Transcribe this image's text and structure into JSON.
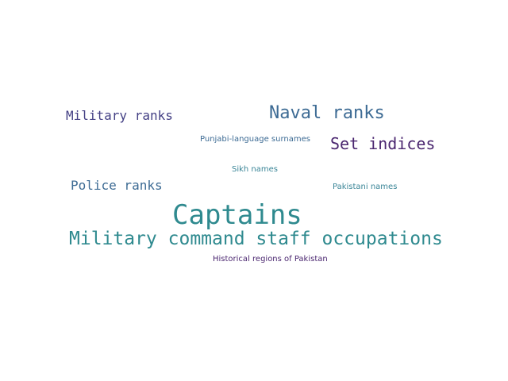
{
  "words": {
    "captains": {
      "text": "Captains",
      "color": "#2f8a8f"
    },
    "military_command_staff_occupations": {
      "text": "Military command staff occupations",
      "color": "#2f8a8f"
    },
    "naval_ranks": {
      "text": "Naval ranks",
      "color": "#3d6b94"
    },
    "set_indices": {
      "text": "Set indices",
      "color": "#4b2770"
    },
    "military_ranks": {
      "text": "Military ranks",
      "color": "#433f84"
    },
    "police_ranks": {
      "text": "Police ranks",
      "color": "#3d6b94"
    },
    "punjabi_language_surnames": {
      "text": "Punjabi-language surnames",
      "color": "#3d6b94"
    },
    "sikh_names": {
      "text": "Sikh names",
      "color": "#3a8597"
    },
    "pakistani_names": {
      "text": "Pakistani names",
      "color": "#3a8597"
    },
    "historical_regions_of_pakistan": {
      "text": "Historical regions of Pakistan",
      "color": "#4b2770"
    }
  }
}
